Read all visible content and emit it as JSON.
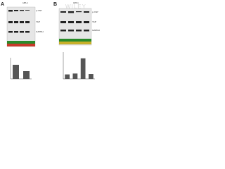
{
  "figure": {
    "watermark": "WILEY",
    "panels": [
      {
        "label": "A",
        "title": "HPL1",
        "blots": [
          "p-YAP",
          "YAP",
          "GAPDH"
        ],
        "chart": {
          "values": [
            1,
            0.55
          ],
          "ylim": [
            0,
            1.5
          ],
          "color": "#555555"
        }
      },
      {
        "label": "B",
        "title": "HPL1",
        "blots": [
          "p-YAP",
          "YAP",
          "GAPDH"
        ],
        "chart": {
          "values": [
            1,
            1.2,
            4.6,
            1.1
          ],
          "ylim": [
            0,
            6
          ],
          "color": "#555555"
        }
      }
    ]
  }
}
